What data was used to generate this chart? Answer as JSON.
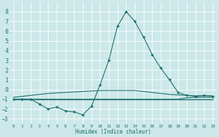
{
  "xlabel": "Humidex (Indice chaleur)",
  "background_color": "#cce8e8",
  "grid_color": "#ffffff",
  "line_color": "#1a6b6b",
  "xlim": [
    -0.5,
    23.5
  ],
  "ylim": [
    -3.5,
    9.0
  ],
  "yticks": [
    -3,
    -2,
    -1,
    0,
    1,
    2,
    3,
    4,
    5,
    6,
    7,
    8
  ],
  "xticks": [
    0,
    1,
    2,
    3,
    4,
    5,
    6,
    7,
    8,
    9,
    10,
    11,
    12,
    13,
    14,
    15,
    16,
    17,
    18,
    19,
    20,
    21,
    22,
    23
  ],
  "series": [
    {
      "x": [
        0,
        1,
        2,
        3,
        4,
        5,
        6,
        7,
        8,
        9,
        10,
        11,
        12,
        13,
        14,
        15,
        16,
        17,
        18,
        19,
        20,
        21,
        22,
        23
      ],
      "y": [
        -1.0,
        -1.0,
        -1.0,
        -1.5,
        -2.0,
        -1.8,
        -2.2,
        -2.3,
        -2.6,
        -1.7,
        0.5,
        3.0,
        6.5,
        8.0,
        7.0,
        5.4,
        3.6,
        2.2,
        1.0,
        -0.3,
        -0.6,
        -0.7,
        -0.6,
        -0.7
      ],
      "marker": "+",
      "markersize": 3.5,
      "linewidth": 0.8
    },
    {
      "x": [
        0,
        1,
        2,
        3,
        4,
        5,
        6,
        7,
        8,
        9,
        10,
        11,
        12,
        13,
        14,
        15,
        16,
        17,
        18,
        19,
        20,
        21,
        22,
        23
      ],
      "y": [
        -1.0,
        -1.0,
        -1.0,
        -1.0,
        -1.0,
        -1.0,
        -1.0,
        -1.0,
        -1.0,
        -1.0,
        -1.0,
        -1.0,
        -1.0,
        -1.0,
        -1.0,
        -1.0,
        -1.0,
        -1.0,
        -1.0,
        -1.0,
        -1.0,
        -1.0,
        -1.0,
        -1.0
      ],
      "marker": null,
      "markersize": 0,
      "linewidth": 1.0
    },
    {
      "x": [
        0,
        1,
        2,
        3,
        4,
        5,
        6,
        7,
        8,
        9,
        10,
        11,
        12,
        13,
        14,
        15,
        16,
        17,
        18,
        19,
        20,
        21,
        22,
        23
      ],
      "y": [
        -0.8,
        -0.7,
        -0.6,
        -0.5,
        -0.4,
        -0.35,
        -0.3,
        -0.25,
        -0.2,
        -0.15,
        -0.1,
        -0.1,
        -0.1,
        -0.1,
        -0.1,
        -0.2,
        -0.3,
        -0.4,
        -0.5,
        -0.55,
        -0.6,
        -0.65,
        -0.65,
        -0.65
      ],
      "marker": null,
      "markersize": 0,
      "linewidth": 0.8
    },
    {
      "x": [
        0,
        1,
        2,
        3,
        4,
        5,
        6,
        7,
        8,
        9,
        10,
        11,
        12,
        13,
        14,
        15,
        16,
        17,
        18,
        19,
        20,
        21,
        22,
        23
      ],
      "y": [
        -1.0,
        -1.0,
        -1.0,
        -1.0,
        -1.0,
        -1.0,
        -1.0,
        -1.0,
        -1.0,
        -1.0,
        -1.0,
        -1.0,
        -1.0,
        -1.0,
        -1.0,
        -1.0,
        -1.0,
        -1.0,
        -1.0,
        -1.0,
        -0.85,
        -0.8,
        -0.8,
        -0.8
      ],
      "marker": null,
      "markersize": 0,
      "linewidth": 0.8
    }
  ]
}
